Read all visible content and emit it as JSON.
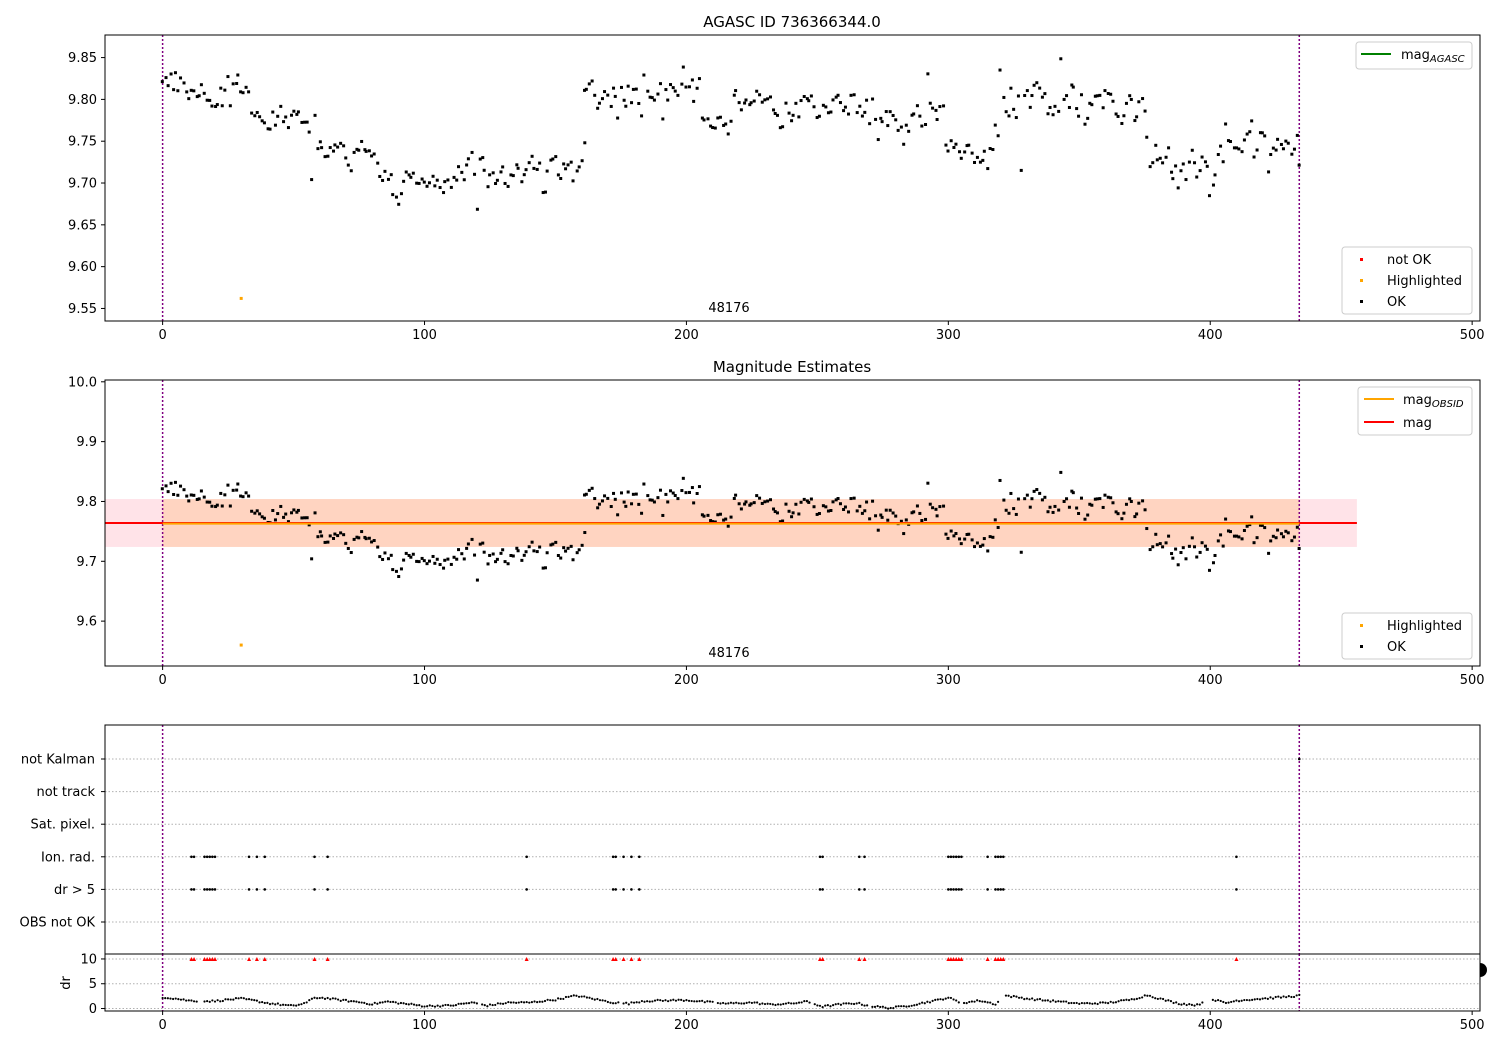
{
  "chart_data": [
    {
      "type": "scatter",
      "title": "AGASC ID 736366344.0",
      "xlabel": "",
      "ylabel": "",
      "xlim": [
        -22,
        503
      ],
      "ylim": [
        9.535,
        9.877
      ],
      "xticks": [
        "0",
        "100",
        "200",
        "300",
        "400",
        "500"
      ],
      "yticks": [
        "9.55",
        "9.60",
        "9.65",
        "9.70",
        "9.75",
        "9.80",
        "9.85"
      ],
      "grid": false,
      "annotation": "48176",
      "vlines": [
        0,
        434
      ],
      "line_legend": {
        "base": "mag",
        "subscript": "AGASC",
        "color": "#008000",
        "placement": "upper right"
      },
      "marker_legend": {
        "placement": "lower right",
        "items": [
          {
            "label": "not OK",
            "color": "#ff0000"
          },
          {
            "label": "Highlighted",
            "color": "#ffa500"
          },
          {
            "label": "OK",
            "color": "#000000"
          }
        ]
      },
      "highlighted_points": [
        [
          30,
          9.562
        ]
      ],
      "segments": [
        {
          "x0": 0,
          "x1": 12,
          "step": 1,
          "y": [
            9.82,
            9.825,
            9.815,
            9.833,
            9.81,
            9.83,
            9.808,
            9.825,
            9.822,
            9.806,
            9.804,
            9.809,
            9.812
          ],
          "noise": 0.004
        },
        {
          "x0": 13,
          "x1": 20,
          "step": 1,
          "y": [
            9.8,
            9.805,
            9.815,
            9.81,
            9.8,
            9.795,
            9.79,
            9.792
          ],
          "noise": 0.004
        },
        {
          "x0": 21,
          "x1": 38,
          "step": 1,
          "y": [
            9.79,
            9.813,
            9.79,
            9.81,
            9.825,
            9.79,
            9.82,
            9.82,
            9.83,
            9.812,
            9.806,
            9.817,
            9.81,
            9.78,
            9.78,
            9.783,
            9.785,
            9.775
          ],
          "noise": 0.006
        },
        {
          "x0": 39,
          "x1": 57,
          "step": 1,
          "y": [
            9.77,
            9.765,
            9.768,
            9.78,
            9.775,
            9.778,
            9.788,
            9.776,
            9.773,
            9.77,
            9.779,
            9.785,
            9.787,
            9.79,
            9.773,
            9.775,
            9.776,
            9.762,
            9.71
          ],
          "noise": 0.006
        },
        {
          "x0": 58,
          "x1": 82,
          "step": 1,
          "y": [
            9.778,
            9.737,
            9.748,
            9.745,
            9.735,
            9.73,
            9.74,
            9.736,
            9.743,
            9.742,
            9.745,
            9.747,
            9.732,
            9.725,
            9.72,
            9.73,
            9.74,
            9.735,
            9.75,
            9.745,
            9.74,
            9.737,
            9.738,
            9.74,
            9.72
          ],
          "noise": 0.007
        },
        {
          "x0": 83,
          "x1": 108,
          "step": 1,
          "y": [
            9.705,
            9.707,
            9.708,
            9.71,
            9.712,
            9.69,
            9.682,
            9.678,
            9.69,
            9.705,
            9.71,
            9.707,
            9.71,
            9.708,
            9.705,
            9.7,
            9.702,
            9.7,
            9.697,
            9.699,
            9.702,
            9.695,
            9.698,
            9.701,
            9.69,
            9.695
          ],
          "noise": 0.007
        },
        {
          "x0": 109,
          "x1": 132,
          "step": 1,
          "y": [
            9.705,
            9.7,
            9.71,
            9.7,
            9.715,
            9.71,
            9.707,
            9.72,
            9.728,
            9.73,
            9.718,
            9.672,
            9.725,
            9.73,
            9.72,
            9.7,
            9.705,
            9.715,
            9.695,
            9.7,
            9.708,
            9.715,
            9.705,
            9.7
          ],
          "noise": 0.008
        },
        {
          "x0": 133,
          "x1": 161,
          "step": 1,
          "y": [
            9.71,
            9.715,
            9.72,
            9.722,
            9.705,
            9.71,
            9.715,
            9.72,
            9.73,
            9.72,
            9.715,
            9.72,
            9.695,
            9.685,
            9.718,
            9.725,
            9.73,
            9.725,
            9.71,
            9.705,
            9.72,
            9.72,
            9.728,
            9.72,
            9.705,
            9.72,
            9.715,
            9.72,
            9.745
          ],
          "noise": 0.007
        },
        {
          "x0": 161,
          "x1": 205,
          "step": 1,
          "y": [
            9.805,
            9.81,
            9.815,
            9.82,
            9.8,
            9.795,
            9.8,
            9.795,
            9.81,
            9.8,
            9.79,
            9.81,
            9.805,
            9.775,
            9.82,
            9.8,
            9.79,
            9.82,
            9.795,
            9.81,
            9.815,
            9.8,
            9.785,
            9.825,
            9.81,
            9.808,
            9.8,
            9.805,
            9.81,
            9.815,
            9.78,
            9.815,
            9.805,
            9.82,
            9.815,
            9.815,
            9.8,
            9.818,
            9.835,
            9.82,
            9.81,
            9.825,
            9.8,
            9.815,
            9.825
          ],
          "noise": 0.006
        },
        {
          "x0": 206,
          "x1": 232,
          "step": 1,
          "y": [
            9.778,
            9.775,
            9.776,
            9.765,
            9.768,
            9.77,
            9.78,
            9.775,
            9.77,
            9.765,
            9.76,
            9.77,
            9.8,
            9.805,
            9.795,
            9.79,
            9.8,
            9.802,
            9.798,
            9.8,
            9.795,
            9.805,
            9.8,
            9.8,
            9.803,
            9.798,
            9.8
          ],
          "noise": 0.006
        },
        {
          "x0": 233,
          "x1": 260,
          "step": 1,
          "y": [
            9.785,
            9.78,
            9.778,
            9.765,
            9.768,
            9.79,
            9.78,
            9.775,
            9.78,
            9.79,
            9.785,
            9.8,
            9.805,
            9.8,
            9.798,
            9.8,
            9.79,
            9.78,
            9.785,
            9.795,
            9.79,
            9.785,
            9.79,
            9.8,
            9.805,
            9.8,
            9.795,
            9.785
          ],
          "noise": 0.006
        },
        {
          "x0": 261,
          "x1": 299,
          "step": 1,
          "y": [
            9.79,
            9.785,
            9.8,
            9.81,
            9.78,
            9.79,
            9.785,
            9.79,
            9.795,
            9.77,
            9.795,
            9.78,
            9.755,
            9.775,
            9.77,
            9.78,
            9.765,
            9.79,
            9.785,
            9.77,
            9.76,
            9.77,
            9.745,
            9.77,
            9.765,
            9.775,
            9.785,
            9.79,
            9.78,
            9.775,
            9.77,
            9.825,
            9.8,
            9.79,
            9.78,
            9.77,
            9.785,
            9.79,
            9.74
          ],
          "noise": 0.007
        },
        {
          "x0": 300,
          "x1": 319,
          "step": 1,
          "y": [
            9.74,
            9.745,
            9.74,
            9.75,
            9.735,
            9.728,
            9.738,
            9.74,
            9.745,
            9.73,
            9.725,
            9.735,
            9.72,
            9.73,
            9.735,
            9.72,
            9.74,
            9.745,
            9.77,
            9.76
          ],
          "noise": 0.006
        },
        {
          "x0": 320,
          "x1": 346,
          "step": 1,
          "y": [
            9.83,
            9.8,
            9.79,
            9.775,
            9.81,
            9.79,
            9.78,
            9.8,
            9.71,
            9.8,
            9.81,
            9.79,
            9.8,
            9.82,
            9.825,
            9.81,
            9.8,
            9.805,
            9.78,
            9.785,
            9.78,
            9.795,
            9.78,
            9.845,
            9.795,
            9.8,
            9.79
          ],
          "noise": 0.006
        },
        {
          "x0": 347,
          "x1": 375,
          "step": 1,
          "y": [
            9.815,
            9.81,
            9.795,
            9.78,
            9.805,
            9.775,
            9.78,
            9.8,
            9.795,
            9.805,
            9.81,
            9.805,
            9.79,
            9.81,
            9.81,
            9.805,
            9.8,
            9.785,
            9.775,
            9.77,
            9.78,
            9.8,
            9.81,
            9.805,
            9.78,
            9.785,
            9.795,
            9.8,
            9.79
          ],
          "noise": 0.006
        },
        {
          "x0": 376,
          "x1": 405,
          "step": 1,
          "y": [
            9.75,
            9.72,
            9.73,
            9.745,
            9.725,
            9.735,
            9.72,
            9.73,
            9.74,
            9.71,
            9.705,
            9.72,
            9.7,
            9.715,
            9.72,
            9.71,
            9.73,
            9.74,
            9.72,
            9.705,
            9.72,
            9.735,
            9.73,
            9.715,
            9.69,
            9.7,
            9.71,
            9.735,
            9.74,
            9.72
          ],
          "noise": 0.006
        },
        {
          "x0": 406,
          "x1": 434,
          "step": 1,
          "y": [
            9.77,
            9.755,
            9.75,
            9.74,
            9.745,
            9.735,
            9.74,
            9.755,
            9.76,
            9.765,
            9.77,
            9.735,
            9.74,
            9.755,
            9.755,
            9.76,
            9.71,
            9.73,
            9.745,
            9.74,
            9.75,
            9.745,
            9.74,
            9.745,
            9.75,
            9.74,
            9.745,
            9.755,
            9.72
          ],
          "noise": 0.006
        }
      ]
    },
    {
      "type": "scatter",
      "title": "Magnitude Estimates",
      "xlabel": "",
      "ylabel": "",
      "xlim": [
        -22,
        503
      ],
      "ylim": [
        9.525,
        10.003
      ],
      "xticks": [
        "0",
        "100",
        "200",
        "300",
        "400",
        "500"
      ],
      "yticks": [
        "9.6",
        "9.7",
        "9.8",
        "9.9",
        "10.0"
      ],
      "grid": false,
      "annotation": "48176",
      "vlines": [
        0,
        434
      ],
      "same_points_as": "top panel",
      "mag_line": {
        "label": "mag",
        "value": 9.764,
        "x_range": [
          -22,
          456
        ],
        "color": "#ff0000",
        "band": [
          9.724,
          9.804
        ],
        "band_color": "#ffc0cb"
      },
      "obsid_line": {
        "base": "mag",
        "subscript": "OBSID",
        "value": 9.763,
        "x_range": [
          0,
          434
        ],
        "color": "#ffa500",
        "band": [
          9.724,
          9.804
        ],
        "band_color": "#ffc8a0"
      },
      "line_legend": {
        "placement": "upper right",
        "items": [
          {
            "base": "mag",
            "subscript": "OBSID",
            "color": "#ffa500"
          },
          {
            "base": "mag",
            "subscript": "",
            "color": "#ff0000"
          }
        ]
      },
      "marker_legend": {
        "placement": "lower right",
        "items": [
          {
            "label": "Highlighted",
            "color": "#ffa500"
          },
          {
            "label": "OK",
            "color": "#000000"
          }
        ]
      },
      "highlighted_points": [
        [
          30,
          9.56
        ]
      ]
    },
    {
      "type": "scatter",
      "title": "",
      "xlabel": "",
      "xlim": [
        -22,
        503
      ],
      "xticks": [
        "0",
        "100",
        "200",
        "300",
        "400",
        "500"
      ],
      "vlines": [
        0,
        434
      ],
      "flag_rows": [
        "not Kalman",
        "not track",
        "Sat. pixel.",
        "Ion. rad.",
        "dr > 5",
        "OBS not OK"
      ],
      "flag_points": {
        "not Kalman": [
          434
        ],
        "Ion. rad.": [
          11,
          12,
          16,
          17,
          18,
          19,
          20,
          33,
          36,
          39,
          58,
          63,
          139,
          172,
          173,
          176,
          179,
          182,
          251,
          252,
          266,
          268,
          300,
          301,
          302,
          303,
          304,
          305,
          315,
          318,
          319,
          320,
          321,
          410
        ],
        "dr > 5": [
          11,
          12,
          16,
          17,
          18,
          19,
          20,
          33,
          36,
          39,
          58,
          63,
          139,
          172,
          173,
          176,
          179,
          182,
          251,
          252,
          266,
          268,
          300,
          301,
          302,
          303,
          304,
          305,
          315,
          318,
          319,
          320,
          321,
          410
        ]
      },
      "dr_panel": {
        "ylabel": "dr",
        "ylim": [
          -0.5,
          11
        ],
        "yticks": [
          "0",
          "5",
          "10"
        ],
        "clipped_value": 10,
        "clipped_color": "#ff0000",
        "profile": [
          [
            0,
            2.3
          ],
          [
            5,
            2.0
          ],
          [
            10,
            1.6
          ],
          [
            16,
            1.5
          ],
          [
            20,
            1.5
          ],
          [
            25,
            1.8
          ],
          [
            30,
            2.0
          ],
          [
            35,
            1.6
          ],
          [
            40,
            1.1
          ],
          [
            45,
            0.8
          ],
          [
            50,
            0.5
          ],
          [
            55,
            1.2
          ],
          [
            58,
            2.2
          ],
          [
            62,
            2.1
          ],
          [
            68,
            1.7
          ],
          [
            75,
            1.3
          ],
          [
            80,
            0.9
          ],
          [
            86,
            1.4
          ],
          [
            92,
            1.0
          ],
          [
            100,
            0.5
          ],
          [
            110,
            0.6
          ],
          [
            118,
            1.2
          ],
          [
            124,
            0.6
          ],
          [
            132,
            1.2
          ],
          [
            140,
            1.2
          ],
          [
            150,
            1.8
          ],
          [
            158,
            2.6
          ],
          [
            165,
            1.9
          ],
          [
            172,
            1.2
          ],
          [
            178,
            1.0
          ],
          [
            183,
            1.5
          ],
          [
            190,
            1.6
          ],
          [
            200,
            1.7
          ],
          [
            208,
            1.3
          ],
          [
            215,
            1.0
          ],
          [
            225,
            1.2
          ],
          [
            232,
            0.8
          ],
          [
            240,
            1.0
          ],
          [
            246,
            1.4
          ],
          [
            252,
            0.4
          ],
          [
            258,
            0.8
          ],
          [
            265,
            1.1
          ],
          [
            270,
            0.5
          ],
          [
            278,
            0.1
          ],
          [
            285,
            0.6
          ],
          [
            295,
            1.6
          ],
          [
            300,
            2.2
          ],
          [
            305,
            1.1
          ],
          [
            312,
            1.6
          ],
          [
            318,
            0.9
          ],
          [
            322,
            2.6
          ],
          [
            330,
            2.0
          ],
          [
            340,
            1.5
          ],
          [
            350,
            1.0
          ],
          [
            360,
            1.1
          ],
          [
            370,
            1.8
          ],
          [
            376,
            2.7
          ],
          [
            382,
            1.8
          ],
          [
            388,
            1.0
          ],
          [
            395,
            0.7
          ],
          [
            400,
            2.0
          ],
          [
            406,
            1.1
          ],
          [
            410,
            1.6
          ],
          [
            420,
            2.0
          ],
          [
            430,
            2.4
          ],
          [
            434,
            2.6
          ]
        ],
        "gaps": [
          [
            13,
            16
          ],
          [
            57,
            58
          ],
          [
            85,
            86
          ],
          [
            120,
            122
          ],
          [
            174,
            176
          ],
          [
            210,
            212
          ],
          [
            247,
            249
          ],
          [
            269,
            271
          ],
          [
            304,
            306
          ],
          [
            319,
            322
          ],
          [
            397,
            401
          ]
        ]
      }
    }
  ]
}
